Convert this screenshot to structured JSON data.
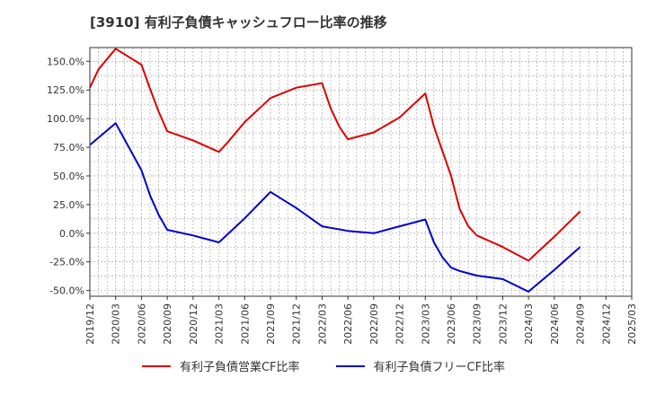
{
  "title": "[3910]  有利子負債キャッシュフロー比率の推移",
  "chart_data": {
    "type": "line",
    "title": "[3910]  有利子負債キャッシュフロー比率の推移",
    "xlabel": "",
    "ylabel": "",
    "x_ticks": [
      "2019/12",
      "2020/03",
      "2020/06",
      "2020/09",
      "2020/12",
      "2021/03",
      "2021/06",
      "2021/09",
      "2021/12",
      "2022/03",
      "2022/06",
      "2022/09",
      "2022/12",
      "2023/03",
      "2023/06",
      "2023/09",
      "2023/12",
      "2024/03",
      "2024/06",
      "2024/09",
      "2024/12",
      "2025/03"
    ],
    "y_ticks": [
      150,
      125,
      100,
      75,
      50,
      25,
      0,
      -25,
      -50
    ],
    "y_tick_labels": [
      "150.0%",
      "125.0%",
      "100.0%",
      "75.0%",
      "50.0%",
      "25.0%",
      "0.0%",
      "-25.0%",
      "-50.0%"
    ],
    "ylim": [
      -55,
      162
    ],
    "grid": true,
    "legend_position": "bottom",
    "series": [
      {
        "name": "有利子負債営業CF比率",
        "color": "#dd0000",
        "points": [
          [
            "2019/12",
            127
          ],
          [
            "2020/01",
            143
          ],
          [
            "2020/03",
            161
          ],
          [
            "2020/06",
            147
          ],
          [
            "2020/07",
            126
          ],
          [
            "2020/08",
            106
          ],
          [
            "2020/09",
            89
          ],
          [
            "2020/12",
            81
          ],
          [
            "2021/03",
            71
          ],
          [
            "2021/04",
            79
          ],
          [
            "2021/06",
            97
          ],
          [
            "2021/09",
            118
          ],
          [
            "2021/12",
            127
          ],
          [
            "2022/03",
            131
          ],
          [
            "2022/04",
            109
          ],
          [
            "2022/05",
            93
          ],
          [
            "2022/06",
            82
          ],
          [
            "2022/09",
            88
          ],
          [
            "2022/12",
            101
          ],
          [
            "2023/03",
            122
          ],
          [
            "2023/04",
            93
          ],
          [
            "2023/06",
            50
          ],
          [
            "2023/07",
            21
          ],
          [
            "2023/08",
            6
          ],
          [
            "2023/09",
            -2
          ],
          [
            "2023/12",
            -12
          ],
          [
            "2024/03",
            -24
          ],
          [
            "2024/06",
            -3
          ],
          [
            "2024/09",
            19
          ]
        ]
      },
      {
        "name": "有利子負債フリーCF比率",
        "color": "#0000cc",
        "points": [
          [
            "2019/12",
            77
          ],
          [
            "2020/03",
            96
          ],
          [
            "2020/06",
            55
          ],
          [
            "2020/07",
            33
          ],
          [
            "2020/08",
            16
          ],
          [
            "2020/09",
            3
          ],
          [
            "2020/12",
            -2
          ],
          [
            "2021/03",
            -8
          ],
          [
            "2021/06",
            13
          ],
          [
            "2021/09",
            36
          ],
          [
            "2021/12",
            22
          ],
          [
            "2022/03",
            6
          ],
          [
            "2022/06",
            2
          ],
          [
            "2022/09",
            0
          ],
          [
            "2022/12",
            6
          ],
          [
            "2023/03",
            12
          ],
          [
            "2023/04",
            -8
          ],
          [
            "2023/05",
            -21
          ],
          [
            "2023/06",
            -30
          ],
          [
            "2023/07",
            -33
          ],
          [
            "2023/09",
            -37
          ],
          [
            "2023/12",
            -40
          ],
          [
            "2024/03",
            -51
          ],
          [
            "2024/06",
            -32
          ],
          [
            "2024/09",
            -12
          ]
        ]
      }
    ]
  }
}
